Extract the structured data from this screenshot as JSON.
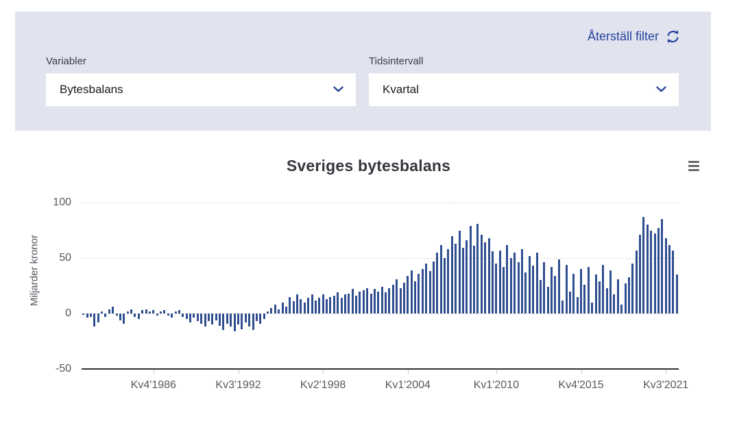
{
  "filter_panel": {
    "reset_label": "Återställ filter",
    "reset_icon": "refresh-icon",
    "fields": [
      {
        "label": "Variabler",
        "value": "Bytesbalans",
        "icon": "chevron-down-icon"
      },
      {
        "label": "Tidsintervall",
        "value": "Kvartal",
        "icon": "chevron-down-icon"
      }
    ]
  },
  "chart": {
    "title": "Sveriges bytesbalans",
    "menu_icon": "hamburger-icon"
  },
  "chart_data": {
    "type": "bar",
    "title": "Sveriges bytesbalans",
    "xlabel": "",
    "ylabel": "Miljarder kronor",
    "ylim": [
      -50,
      100
    ],
    "yticks": [
      100,
      50,
      0,
      -50
    ],
    "grid": "dashed-horizontal",
    "legend": "none",
    "x_unit": "quarter",
    "x_range_start": "Kv1'1982",
    "x_range_end": "Kv2'2022",
    "x_ticks": [
      {
        "index": 19,
        "label": "Kv4'1986"
      },
      {
        "index": 42,
        "label": "Kv3'1992"
      },
      {
        "index": 65,
        "label": "Kv2'1998"
      },
      {
        "index": 88,
        "label": "Kv1'2004"
      },
      {
        "index": 112,
        "label": "Kv1'2010"
      },
      {
        "index": 135,
        "label": "Kv4'2015"
      },
      {
        "index": 158,
        "label": "Kv3'2021"
      }
    ],
    "values": [
      -1,
      -4,
      -3,
      -12,
      -8,
      2,
      -3,
      4,
      6,
      -2,
      -6,
      -9,
      2,
      4,
      -3,
      -5,
      3,
      4,
      2,
      3,
      -2,
      2,
      3,
      -2,
      -4,
      2,
      3,
      -3,
      -5,
      -8,
      -4,
      -7,
      -9,
      -12,
      -7,
      -10,
      -6,
      -11,
      -15,
      -9,
      -12,
      -16,
      -10,
      -14,
      -8,
      -12,
      -15,
      -7,
      -9,
      -5,
      2,
      5,
      8,
      4,
      10,
      6,
      15,
      11,
      17,
      13,
      10,
      14,
      17,
      12,
      14,
      17,
      13,
      15,
      16,
      19,
      14,
      17,
      18,
      22,
      16,
      20,
      21,
      23,
      18,
      22,
      20,
      24,
      19,
      23,
      26,
      31,
      23,
      28,
      34,
      39,
      29,
      36,
      40,
      45,
      38,
      47,
      55,
      62,
      50,
      58,
      70,
      63,
      75,
      59,
      66,
      79,
      61,
      81,
      71,
      64,
      68,
      56,
      45,
      57,
      42,
      62,
      50,
      55,
      46,
      58,
      37,
      52,
      43,
      55,
      30,
      46,
      24,
      42,
      34,
      49,
      12,
      44,
      20,
      36,
      15,
      40,
      26,
      42,
      10,
      35,
      29,
      44,
      23,
      39,
      17,
      31,
      8,
      27,
      33,
      45,
      57,
      71,
      87,
      80,
      75,
      72,
      77,
      85,
      68,
      62,
      57,
      35
    ],
    "bar_color": "#2f4e90"
  },
  "colors": {
    "panel_bg": "#e1e3ef",
    "accent_navy": "#24439b",
    "bar": "#2f4e90",
    "title_text": "#35353d",
    "axis_text": "#57575f",
    "grid": "#dcdcdc"
  }
}
